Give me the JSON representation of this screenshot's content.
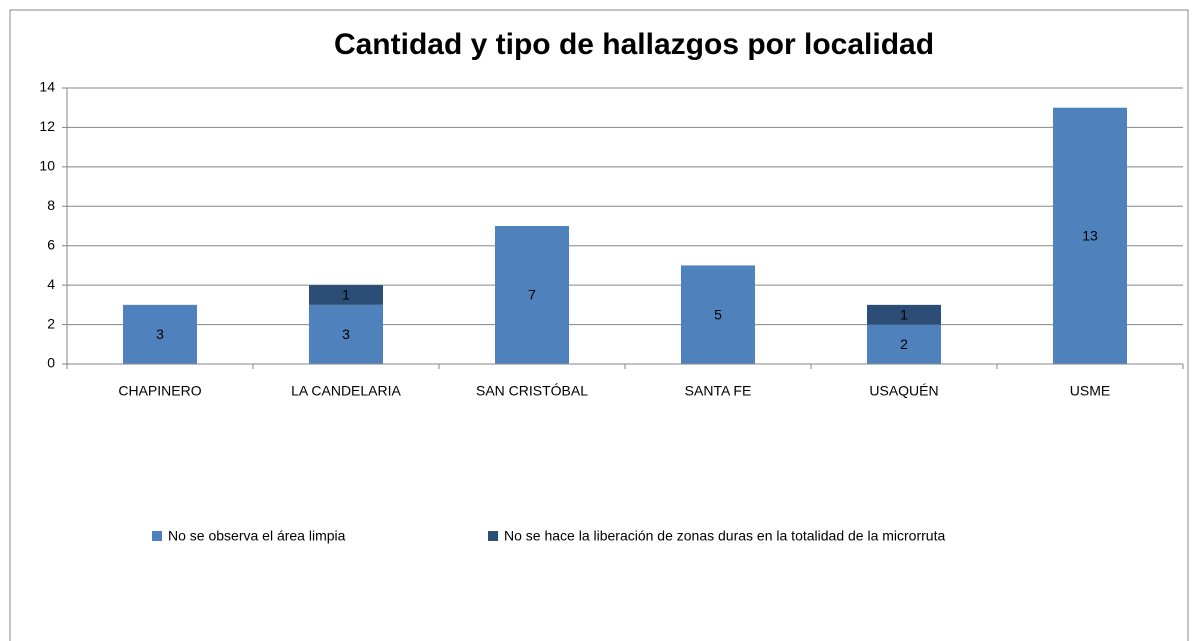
{
  "chart_data": {
    "type": "stacked_bar",
    "title": "Cantidad y tipo de hallazgos por localidad",
    "categories": [
      "CHAPINERO",
      "LA CANDELARIA",
      "SAN CRISTÓBAL",
      "SANTA FE",
      "USAQUÉN",
      "USME"
    ],
    "series": [
      {
        "name": "No se observa el área limpia",
        "color": "#4f81bd",
        "values": [
          3,
          3,
          7,
          5,
          2,
          13
        ]
      },
      {
        "name": "No se hace la liberación de zonas duras en la totalidad de la microrruta",
        "color": "#2c4d75",
        "values": [
          0,
          1,
          0,
          0,
          1,
          0
        ]
      }
    ],
    "ylim": [
      0,
      14
    ],
    "yticks": [
      0,
      2,
      4,
      6,
      8,
      10,
      12,
      14
    ],
    "grid": true,
    "legend": "bottom"
  }
}
